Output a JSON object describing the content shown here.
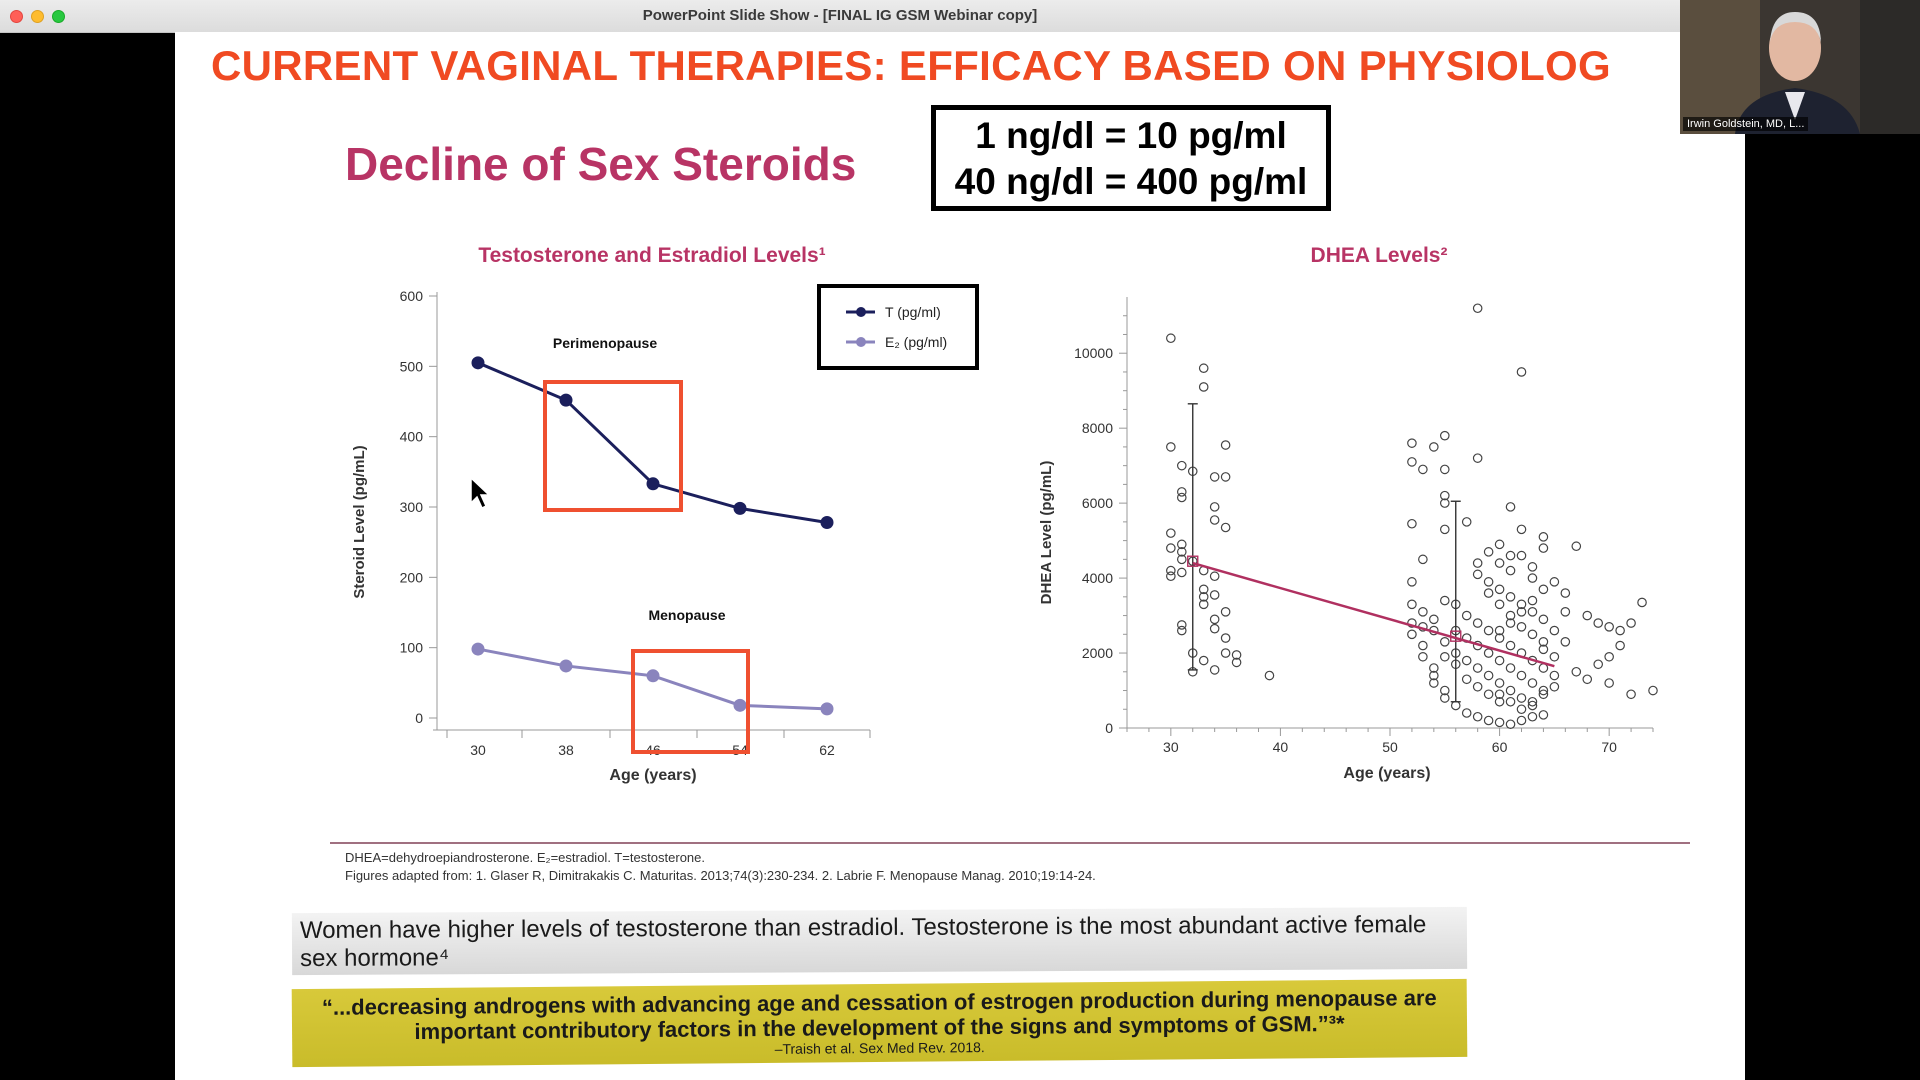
{
  "window": {
    "title": "PowerPoint Slide Show - [FINAL IG GSM Webinar copy]"
  },
  "slide": {
    "title": "CURRENT VAGINAL THERAPIES: EFFICACY BASED ON PHYSIOLOG",
    "subtitle": "Decline of Sex Steroids",
    "conversion": {
      "line1": "1 ng/dl = 10 pg/ml",
      "line2": "40 ng/dl = 400 pg/ml"
    },
    "footnote_abbrev": "DHEA=dehydroepiandrosterone. E₂=estradiol. T=testosterone.",
    "footnote_source": "Figures adapted from: 1. Glaser R, Dimitrakakis C. Maturitas. 2013;74(3):230-234. 2. Labrie F. Menopause Manag. 2010;19:14-24.",
    "quote1": "Women have higher levels of testosterone than estradiol. Testosterone is the most abundant active female sex hormone⁴",
    "quote2": "“...decreasing androgens with advancing age and cessation of estrogen production during menopause are important contributory factors in the development of the signs and symptoms of GSM.”³*",
    "quote2_cite": "–Traish et al. Sex Med Rev. 2018."
  },
  "video": {
    "participant_name": "Irwin Goldstein, MD, L..."
  },
  "colors": {
    "title": "#f04a22",
    "subtitle": "#b83465",
    "t_series": "#1b1f5c",
    "e2_series": "#8a84bd",
    "highlight": "#ef5030",
    "trend": "#b03060",
    "quote_yellow": "#d2c434"
  },
  "chart_data": [
    {
      "type": "line",
      "title": "Testosterone and Estradiol Levels¹",
      "xlabel": "Age (years)",
      "ylabel": "Steroid Level (pg/mL)",
      "categories": [
        "30",
        "38",
        "46",
        "54",
        "62"
      ],
      "ylim": [
        0,
        600
      ],
      "yticks": [
        0,
        100,
        200,
        300,
        400,
        500,
        600
      ],
      "series": [
        {
          "name": "T (pg/ml)",
          "values": [
            505,
            452,
            333,
            298,
            278
          ]
        },
        {
          "name": "E₂ (pg/ml)",
          "values": [
            98,
            74,
            60,
            18,
            13
          ]
        }
      ],
      "annotations": [
        "Perimenopause",
        "Menopause"
      ],
      "legend": "top-right"
    },
    {
      "type": "scatter",
      "title": "DHEA Levels²",
      "xlabel": "Age (years)",
      "ylabel": "DHEA Level (pg/mL)",
      "xticks": [
        30,
        40,
        50,
        60,
        70
      ],
      "yticks": [
        0,
        2000,
        4000,
        6000,
        8000,
        10000
      ],
      "xlim": [
        26,
        74
      ],
      "ylim": [
        0,
        11500
      ],
      "young_group": {
        "mean_age": 32,
        "mean": 4450,
        "sd_low": 1550,
        "sd_high": 8650
      },
      "old_group": {
        "mean_age": 56,
        "mean": 2450,
        "sd_low": 700,
        "sd_high": 6050
      },
      "trend": [
        [
          32,
          4400
        ],
        [
          65,
          1650
        ]
      ],
      "points": [
        [
          30,
          10400
        ],
        [
          31,
          7000
        ],
        [
          32,
          6850
        ],
        [
          30,
          7500
        ],
        [
          33,
          9600
        ],
        [
          33,
          9100
        ],
        [
          34,
          6700
        ],
        [
          35,
          6700
        ],
        [
          35,
          7550
        ],
        [
          31,
          6150
        ],
        [
          31,
          6300
        ],
        [
          30,
          5200
        ],
        [
          31,
          4700
        ],
        [
          31,
          4900
        ],
        [
          30,
          4800
        ],
        [
          31,
          4500
        ],
        [
          32,
          4450
        ],
        [
          30,
          4200
        ],
        [
          31,
          4150
        ],
        [
          30,
          4050
        ],
        [
          33,
          4200
        ],
        [
          33,
          3700
        ],
        [
          33,
          3500
        ],
        [
          33,
          3300
        ],
        [
          34,
          3550
        ],
        [
          34,
          2900
        ],
        [
          34,
          2650
        ],
        [
          34,
          5900
        ],
        [
          34,
          5550
        ],
        [
          35,
          5350
        ],
        [
          31,
          2750
        ],
        [
          31,
          2600
        ],
        [
          32,
          2000
        ],
        [
          32,
          1500
        ],
        [
          33,
          1800
        ],
        [
          34,
          1550
        ],
        [
          35,
          2000
        ],
        [
          35,
          3100
        ],
        [
          36,
          1750
        ],
        [
          36,
          1950
        ],
        [
          39,
          1400
        ],
        [
          34,
          4050
        ],
        [
          35,
          2400
        ],
        [
          52,
          7600
        ],
        [
          52,
          7100
        ],
        [
          53,
          6900
        ],
        [
          52,
          5450
        ],
        [
          53,
          4500
        ],
        [
          52,
          3900
        ],
        [
          55,
          7800
        ],
        [
          55,
          6900
        ],
        [
          54,
          7500
        ],
        [
          55,
          6200
        ],
        [
          55,
          6000
        ],
        [
          57,
          5500
        ],
        [
          55,
          5300
        ],
        [
          58,
          7200
        ],
        [
          58,
          11200
        ],
        [
          62,
          9500
        ],
        [
          61,
          5900
        ],
        [
          62,
          5300
        ],
        [
          64,
          5100
        ],
        [
          64,
          4800
        ],
        [
          67,
          4850
        ],
        [
          60,
          4400
        ],
        [
          61,
          4200
        ],
        [
          63,
          4300
        ],
        [
          65,
          3900
        ],
        [
          66,
          3600
        ],
        [
          66,
          3100
        ],
        [
          68,
          3000
        ],
        [
          69,
          2800
        ],
        [
          70,
          2700
        ],
        [
          71,
          2600
        ],
        [
          72,
          2800
        ],
        [
          73,
          3350
        ],
        [
          74,
          1000
        ],
        [
          70,
          1900
        ],
        [
          71,
          2200
        ],
        [
          72,
          900
        ],
        [
          69,
          1700
        ],
        [
          70,
          1200
        ],
        [
          68,
          1300
        ],
        [
          67,
          1500
        ],
        [
          66,
          2300
        ],
        [
          65,
          1900
        ],
        [
          64,
          2100
        ],
        [
          52,
          3300
        ],
        [
          52,
          2800
        ],
        [
          52,
          2500
        ],
        [
          53,
          2200
        ],
        [
          53,
          1900
        ],
        [
          54,
          1600
        ],
        [
          54,
          1400
        ],
        [
          54,
          1200
        ],
        [
          55,
          1000
        ],
        [
          55,
          800
        ],
        [
          56,
          600
        ],
        [
          57,
          400
        ],
        [
          58,
          300
        ],
        [
          59,
          200
        ],
        [
          60,
          150
        ],
        [
          61,
          100
        ],
        [
          62,
          200
        ],
        [
          63,
          300
        ],
        [
          64,
          350
        ],
        [
          53,
          3100
        ],
        [
          54,
          2900
        ],
        [
          55,
          3400
        ],
        [
          56,
          3300
        ],
        [
          57,
          3000
        ],
        [
          58,
          2800
        ],
        [
          59,
          2600
        ],
        [
          60,
          2400
        ],
        [
          61,
          2200
        ],
        [
          62,
          2000
        ],
        [
          63,
          1800
        ],
        [
          64,
          1600
        ],
        [
          65,
          1400
        ],
        [
          56,
          2000
        ],
        [
          57,
          1800
        ],
        [
          58,
          1600
        ],
        [
          59,
          1400
        ],
        [
          60,
          1200
        ],
        [
          61,
          1000
        ],
        [
          62,
          800
        ],
        [
          63,
          600
        ],
        [
          56,
          2600
        ],
        [
          57,
          2400
        ],
        [
          58,
          2200
        ],
        [
          59,
          2000
        ],
        [
          60,
          1800
        ],
        [
          61,
          1600
        ],
        [
          62,
          1400
        ],
        [
          63,
          1200
        ],
        [
          64,
          1000
        ],
        [
          59,
          3600
        ],
        [
          60,
          3300
        ],
        [
          61,
          3000
        ],
        [
          62,
          2700
        ],
        [
          63,
          2500
        ],
        [
          64,
          2300
        ],
        [
          58,
          4100
        ],
        [
          59,
          3900
        ],
        [
          60,
          3700
        ],
        [
          61,
          3500
        ],
        [
          62,
          3300
        ],
        [
          63,
          3100
        ],
        [
          64,
          2900
        ],
        [
          60,
          900
        ],
        [
          61,
          700
        ],
        [
          62,
          500
        ],
        [
          63,
          700
        ],
        [
          64,
          900
        ],
        [
          65,
          1100
        ],
        [
          57,
          1300
        ],
        [
          58,
          1100
        ],
        [
          59,
          900
        ],
        [
          60,
          700
        ],
        [
          55,
          1900
        ],
        [
          56,
          1700
        ],
        [
          55,
          2300
        ],
        [
          54,
          2600
        ],
        [
          53,
          2700
        ],
        [
          62,
          4600
        ],
        [
          63,
          4000
        ],
        [
          61,
          4600
        ],
        [
          60,
          4900
        ],
        [
          59,
          4700
        ],
        [
          58,
          4400
        ],
        [
          60,
          2600
        ],
        [
          61,
          2800
        ],
        [
          62,
          3100
        ],
        [
          63,
          3400
        ],
        [
          64,
          3700
        ],
        [
          65,
          2600
        ]
      ]
    }
  ]
}
